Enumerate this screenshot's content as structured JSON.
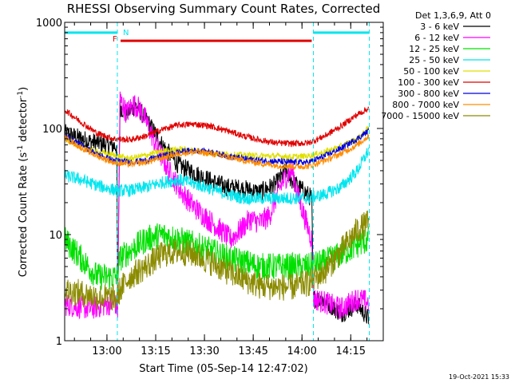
{
  "chart_data": {
    "type": "line",
    "title": "RHESSI Observing Summary Count Rates, Corrected",
    "xlabel": "Start Time (05-Sep-14 12:47:02)",
    "ylabel": "Corrected Count Rate (s-1 detector-1)",
    "ylabel_parts": [
      "Corrected Count Rate (s",
      "-1",
      " detector",
      "-1",
      ")"
    ],
    "y_scale": "log",
    "ylim": [
      1,
      1000
    ],
    "xlim_minutes": [
      0,
      98
    ],
    "x_ticks": [
      {
        "label": "13:00",
        "t": 13
      },
      {
        "label": "13:15",
        "t": 28
      },
      {
        "label": "13:30",
        "t": 43
      },
      {
        "label": "13:45",
        "t": 58
      },
      {
        "label": "14:00",
        "t": 73
      },
      {
        "label": "14:15",
        "t": 88
      }
    ],
    "y_ticks": [
      {
        "label": "1",
        "v": 1
      },
      {
        "label": "10",
        "v": 10
      },
      {
        "label": "100",
        "v": 100
      },
      {
        "label": "1000",
        "v": 1000
      }
    ],
    "legend_title": "Det 1,3,6,9, Att 0",
    "legend_placement": "right, outside plot",
    "timestamp": "19-Oct-2021 15:33",
    "flag_labels": {
      "F": "F",
      "N": "N"
    },
    "flags": {
      "night": {
        "intervals": [
          [
            0,
            16.2
          ],
          [
            76.5,
            93.7
          ]
        ],
        "level": 800,
        "color": "#00e5ee"
      },
      "flare": {
        "intervals": [
          [
            17.2,
            76.0
          ]
        ],
        "level": 670,
        "color": "#e00000"
      }
    },
    "gaps": [
      16.2,
      76.5,
      93.7
    ],
    "series": [
      {
        "name": "3 - 6 keV",
        "color": "#000000",
        "points": [
          [
            0,
            90
          ],
          [
            8,
            75
          ],
          [
            16,
            68
          ],
          [
            16.3,
            2.2
          ],
          [
            17,
            160
          ],
          [
            19,
            140
          ],
          [
            22,
            165
          ],
          [
            26,
            110
          ],
          [
            30,
            70
          ],
          [
            35,
            45
          ],
          [
            40,
            38
          ],
          [
            45,
            32
          ],
          [
            50,
            28
          ],
          [
            55,
            27
          ],
          [
            60,
            25
          ],
          [
            65,
            30
          ],
          [
            68,
            40
          ],
          [
            70,
            32
          ],
          [
            72,
            28
          ],
          [
            74,
            25
          ],
          [
            76,
            22
          ],
          [
            76.5,
            2.5
          ],
          [
            80,
            2.4
          ],
          [
            85,
            1.8
          ],
          [
            90,
            2.2
          ],
          [
            93.5,
            1.6
          ]
        ]
      },
      {
        "name": "6 - 12 keV",
        "color": "#ff00ff",
        "points": [
          [
            0,
            2.2
          ],
          [
            8,
            2.0
          ],
          [
            15.5,
            2.3
          ],
          [
            16.3,
            1.9
          ],
          [
            17,
            190
          ],
          [
            19,
            140
          ],
          [
            21,
            170
          ],
          [
            23,
            155
          ],
          [
            25,
            120
          ],
          [
            28,
            70
          ],
          [
            32,
            40
          ],
          [
            36,
            25
          ],
          [
            40,
            18
          ],
          [
            44,
            14
          ],
          [
            48,
            11
          ],
          [
            51,
            9
          ],
          [
            54,
            11
          ],
          [
            57,
            14
          ],
          [
            60,
            13
          ],
          [
            63,
            15
          ],
          [
            66,
            27
          ],
          [
            68,
            35
          ],
          [
            70,
            40
          ],
          [
            72,
            22
          ],
          [
            74,
            14
          ],
          [
            76,
            9
          ],
          [
            76.5,
            2.5
          ],
          [
            80,
            2.3
          ],
          [
            85,
            2.0
          ],
          [
            90,
            2.5
          ],
          [
            93.5,
            2.3
          ]
        ]
      },
      {
        "name": "12 - 25 keV",
        "color": "#00e000",
        "points": [
          [
            0,
            9
          ],
          [
            5,
            6
          ],
          [
            10,
            4
          ],
          [
            16,
            4
          ],
          [
            17,
            6
          ],
          [
            20,
            7
          ],
          [
            25,
            9
          ],
          [
            30,
            10
          ],
          [
            35,
            9
          ],
          [
            40,
            8
          ],
          [
            45,
            7
          ],
          [
            50,
            6
          ],
          [
            55,
            5.5
          ],
          [
            60,
            5
          ],
          [
            65,
            5
          ],
          [
            70,
            5
          ],
          [
            75,
            5
          ],
          [
            80,
            5.5
          ],
          [
            85,
            6.5
          ],
          [
            90,
            8
          ],
          [
            93.5,
            9
          ]
        ]
      },
      {
        "name": "25 - 50 keV",
        "color": "#00e5ee",
        "points": [
          [
            0,
            36
          ],
          [
            5,
            33
          ],
          [
            10,
            29
          ],
          [
            16,
            26
          ],
          [
            20,
            26
          ],
          [
            25,
            28
          ],
          [
            30,
            31
          ],
          [
            35,
            33
          ],
          [
            40,
            30
          ],
          [
            45,
            27
          ],
          [
            50,
            24
          ],
          [
            55,
            22
          ],
          [
            60,
            22
          ],
          [
            65,
            22
          ],
          [
            70,
            22
          ],
          [
            75,
            22
          ],
          [
            80,
            24
          ],
          [
            85,
            28
          ],
          [
            90,
            40
          ],
          [
            93.5,
            62
          ]
        ]
      },
      {
        "name": "50 - 100 keV",
        "color": "#e0e000",
        "points": [
          [
            0,
            80
          ],
          [
            5,
            68
          ],
          [
            10,
            60
          ],
          [
            15,
            56
          ],
          [
            20,
            52
          ],
          [
            25,
            56
          ],
          [
            30,
            61
          ],
          [
            35,
            64
          ],
          [
            40,
            62
          ],
          [
            45,
            59
          ],
          [
            50,
            57
          ],
          [
            55,
            56
          ],
          [
            60,
            55
          ],
          [
            65,
            55
          ],
          [
            70,
            54
          ],
          [
            75,
            55
          ],
          [
            80,
            60
          ],
          [
            85,
            68
          ],
          [
            90,
            80
          ],
          [
            93.5,
            100
          ]
        ]
      },
      {
        "name": "100 - 300 keV",
        "color": "#e00000",
        "points": [
          [
            0,
            150
          ],
          [
            5,
            115
          ],
          [
            10,
            90
          ],
          [
            15,
            80
          ],
          [
            20,
            78
          ],
          [
            25,
            85
          ],
          [
            30,
            98
          ],
          [
            35,
            108
          ],
          [
            40,
            110
          ],
          [
            45,
            105
          ],
          [
            50,
            95
          ],
          [
            55,
            85
          ],
          [
            60,
            78
          ],
          [
            65,
            73
          ],
          [
            70,
            72
          ],
          [
            75,
            73
          ],
          [
            80,
            85
          ],
          [
            85,
            105
          ],
          [
            90,
            135
          ],
          [
            93.5,
            155
          ]
        ]
      },
      {
        "name": "300 - 800 keV",
        "color": "#0000e0",
        "points": [
          [
            0,
            85
          ],
          [
            5,
            70
          ],
          [
            10,
            57
          ],
          [
            15,
            50
          ],
          [
            20,
            48
          ],
          [
            25,
            50
          ],
          [
            30,
            55
          ],
          [
            35,
            60
          ],
          [
            40,
            62
          ],
          [
            45,
            60
          ],
          [
            50,
            55
          ],
          [
            55,
            52
          ],
          [
            60,
            50
          ],
          [
            65,
            49
          ],
          [
            70,
            48
          ],
          [
            75,
            48
          ],
          [
            80,
            55
          ],
          [
            85,
            65
          ],
          [
            90,
            80
          ],
          [
            93.5,
            95
          ]
        ]
      },
      {
        "name": "800 - 7000 keV",
        "color": "#ff8c00",
        "points": [
          [
            0,
            82
          ],
          [
            5,
            66
          ],
          [
            10,
            55
          ],
          [
            15,
            48
          ],
          [
            20,
            46
          ],
          [
            25,
            48
          ],
          [
            30,
            53
          ],
          [
            35,
            58
          ],
          [
            40,
            60
          ],
          [
            45,
            58
          ],
          [
            50,
            54
          ],
          [
            55,
            50
          ],
          [
            60,
            47
          ],
          [
            65,
            45
          ],
          [
            70,
            44
          ],
          [
            75,
            44
          ],
          [
            80,
            50
          ],
          [
            85,
            58
          ],
          [
            90,
            70
          ],
          [
            93.5,
            85
          ]
        ]
      },
      {
        "name": "7000 - 15000 keV",
        "color": "#8b8b00",
        "points": [
          [
            0,
            3
          ],
          [
            5,
            2.8
          ],
          [
            10,
            2.6
          ],
          [
            16,
            2.5
          ],
          [
            17,
            3
          ],
          [
            20,
            4
          ],
          [
            25,
            5
          ],
          [
            30,
            6.5
          ],
          [
            35,
            7
          ],
          [
            40,
            6.5
          ],
          [
            45,
            5.5
          ],
          [
            50,
            4.5
          ],
          [
            55,
            3.8
          ],
          [
            60,
            3.3
          ],
          [
            65,
            3.2
          ],
          [
            70,
            3.2
          ],
          [
            75,
            3.5
          ],
          [
            80,
            4.5
          ],
          [
            85,
            7
          ],
          [
            90,
            11
          ],
          [
            93.5,
            13
          ]
        ]
      }
    ]
  }
}
